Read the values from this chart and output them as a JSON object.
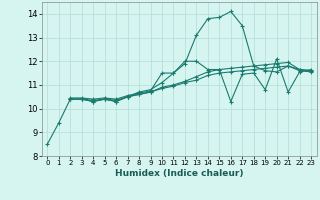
{
  "xlabel": "Humidex (Indice chaleur)",
  "bg_color": "#d6f5f0",
  "grid_color": "#b0ddd8",
  "line_color": "#1a7a6e",
  "xlim": [
    -0.5,
    23.5
  ],
  "ylim": [
    8,
    14.5
  ],
  "yticks": [
    8,
    9,
    10,
    11,
    12,
    13,
    14
  ],
  "xticks": [
    0,
    1,
    2,
    3,
    4,
    5,
    6,
    7,
    8,
    9,
    10,
    11,
    12,
    13,
    14,
    15,
    16,
    17,
    18,
    19,
    20,
    21,
    22,
    23
  ],
  "lines": [
    {
      "x": [
        0,
        1,
        2,
        3,
        4,
        5,
        6,
        7,
        8,
        9,
        10,
        11,
        12,
        13,
        14,
        15,
        16,
        17,
        18,
        19,
        20,
        21,
        22,
        23
      ],
      "y": [
        8.5,
        9.4,
        10.4,
        10.4,
        10.3,
        10.4,
        10.3,
        10.5,
        10.7,
        10.8,
        11.1,
        11.5,
        11.9,
        13.1,
        13.8,
        13.85,
        14.1,
        13.5,
        11.8,
        11.6,
        11.55,
        11.8,
        11.65,
        11.6
      ]
    },
    {
      "x": [
        2,
        3,
        4,
        5,
        6,
        7,
        8,
        9,
        10,
        11,
        12,
        13,
        14,
        15,
        16,
        17,
        18,
        19,
        20,
        21,
        22,
        23
      ],
      "y": [
        10.4,
        10.4,
        10.3,
        10.4,
        10.3,
        10.5,
        10.6,
        10.7,
        10.9,
        11.0,
        11.15,
        11.35,
        11.55,
        11.65,
        11.7,
        11.75,
        11.8,
        11.85,
        11.9,
        11.95,
        11.65,
        11.6
      ]
    },
    {
      "x": [
        2,
        3,
        4,
        5,
        6,
        7,
        8,
        9,
        10,
        11,
        12,
        13,
        14,
        15,
        16,
        17,
        18,
        19,
        20,
        21,
        22,
        23
      ],
      "y": [
        10.4,
        10.4,
        10.35,
        10.4,
        10.35,
        10.5,
        10.6,
        10.7,
        10.85,
        10.95,
        11.1,
        11.2,
        11.4,
        11.5,
        11.55,
        11.6,
        11.65,
        11.7,
        11.75,
        11.8,
        11.6,
        11.55
      ]
    },
    {
      "x": [
        2,
        3,
        4,
        5,
        6,
        7,
        8,
        9,
        10,
        11,
        12,
        13,
        14,
        15,
        16,
        17,
        18,
        19,
        20,
        21,
        22,
        23
      ],
      "y": [
        10.45,
        10.45,
        10.4,
        10.45,
        10.4,
        10.55,
        10.65,
        10.75,
        11.5,
        11.5,
        12.0,
        12.0,
        11.65,
        11.65,
        10.3,
        11.45,
        11.5,
        10.8,
        12.1,
        10.7,
        11.55,
        11.65
      ]
    }
  ]
}
